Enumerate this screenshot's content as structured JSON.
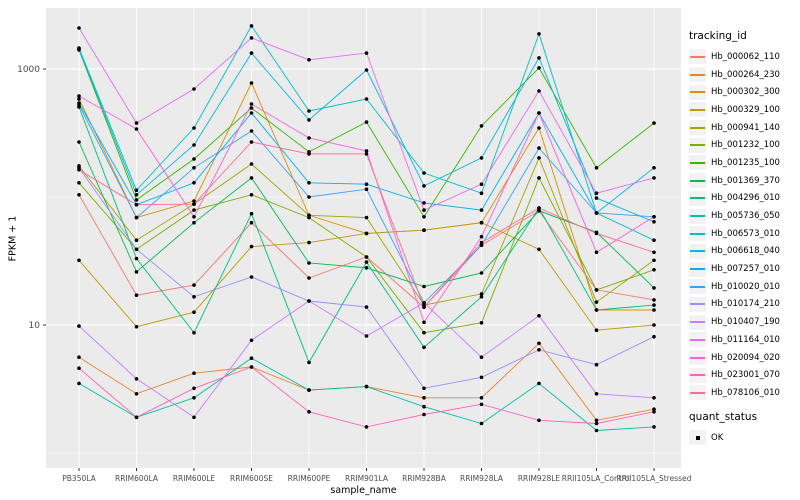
{
  "chart_data": {
    "type": "line",
    "title": "",
    "xlabel": "sample_name",
    "ylabel": "FPKM + 1",
    "y_scale": "log10",
    "ylim": [
      0.8,
      2900
    ],
    "y_major_ticks": [
      {
        "label": "10",
        "value": 10
      },
      {
        "label": "1000",
        "value": 1000
      }
    ],
    "y_minor_ticks": [
      1,
      100
    ],
    "grid": true,
    "legend_position": "right",
    "legend_title": "tracking_id",
    "point_color": "#000000",
    "panel_color": "#EBEBEB",
    "grid_color": "#FFFFFF",
    "tick_label_color": "#4D4D4D",
    "x_categories": [
      "PB350LA",
      "RRIM600LA",
      "RRIM600LE",
      "RRIM600SE",
      "RRIM600PE",
      "RRIM901LA",
      "RRIM928BA",
      "RRIM928LA",
      "RRIM928LE",
      "RRII105LA_Control",
      "RRII105LA_Stressed"
    ],
    "series": [
      {
        "name": "Hb_000062_110",
        "color": "#F8766D",
        "values": [
          104,
          17.1,
          20.5,
          63,
          23.3,
          34,
          13.8,
          42,
          78,
          18.8,
          15.7
        ]
      },
      {
        "name": "Hb_000264_230",
        "color": "#EA8331",
        "values": [
          5.6,
          2.9,
          4.2,
          4.7,
          3.1,
          3.3,
          2.7,
          2.7,
          7.2,
          1.8,
          2.2
        ]
      },
      {
        "name": "Hb_000302_300",
        "color": "#D89000",
        "values": [
          583,
          69,
          93,
          778,
          72,
          52,
          55,
          63,
          346,
          13.1,
          13.1
        ]
      },
      {
        "name": "Hb_000329_100",
        "color": "#C09B00",
        "values": [
          32,
          9.7,
          12.6,
          41,
          44,
          52,
          55,
          63,
          39,
          9.1,
          10
        ]
      },
      {
        "name": "Hb_000941_140",
        "color": "#A3A500",
        "values": [
          175,
          46,
          88,
          181,
          72,
          69,
          14.3,
          17.5,
          202,
          15.1,
          32
        ]
      },
      {
        "name": "Hb_001232_100",
        "color": "#7CAE00",
        "values": [
          129,
          39,
          79,
          104,
          69,
          34,
          8.7,
          10.4,
          141,
          18.8,
          27
        ]
      },
      {
        "name": "Hb_001235_100",
        "color": "#39B600",
        "values": [
          1410,
          95,
          198,
          496,
          225,
          385,
          70,
          359,
          1020,
          169,
          378
        ]
      },
      {
        "name": "Hb_001369_370",
        "color": "#00BB4E",
        "values": [
          269,
          26,
          63,
          141,
          30.5,
          28,
          20,
          25.5,
          78,
          53,
          19.5
        ]
      },
      {
        "name": "Hb_004296_010",
        "color": "#00BF7D",
        "values": [
          505,
          33,
          8.7,
          74,
          5.1,
          31,
          6.7,
          16.6,
          82,
          13.1,
          14.3
        ]
      },
      {
        "name": "Hb_005736_050",
        "color": "#00C1A3",
        "values": [
          3.5,
          1.9,
          2.7,
          5.5,
          3.1,
          3.3,
          2.3,
          1.7,
          3.5,
          1.5,
          1.6
        ]
      },
      {
        "name": "Hb_006573_010",
        "color": "#00BFC4",
        "values": [
          1460,
          113,
          346,
          2170,
          470,
          583,
          154,
          107,
          1880,
          75,
          46
        ]
      },
      {
        "name": "Hb_006618_040",
        "color": "#00BAE0",
        "values": [
          1430,
          104,
          255,
          1330,
          400,
          982,
          122,
          202,
          1220,
          98,
          64
        ]
      },
      {
        "name": "Hb_007257_010",
        "color": "#00B0F6",
        "values": [
          542,
          87,
          129,
          453,
          129,
          126,
          90,
          79,
          453,
          75,
          169
        ]
      },
      {
        "name": "Hb_010020_010",
        "color": "#35A2FF",
        "values": [
          524,
          69,
          169,
          328,
          100,
          115,
          14.9,
          42,
          241,
          75,
          70
        ]
      },
      {
        "name": "Hb_010174_210",
        "color": "#9590FF",
        "values": [
          169,
          39,
          16.6,
          23.7,
          15.4,
          13.8,
          3.2,
          3.9,
          6.4,
          4.9,
          8.1
        ]
      },
      {
        "name": "Hb_010407_190",
        "color": "#C77CFF",
        "values": [
          9.8,
          3.8,
          1.9,
          7.6,
          15.4,
          8.2,
          14.9,
          5.6,
          11.8,
          2.9,
          2.7
        ]
      },
      {
        "name": "Hb_011164_010",
        "color": "#E76BF3",
        "values": [
          2090,
          378,
          698,
          1750,
          1180,
          1330,
          79,
          126,
          673,
          107,
          141
        ]
      },
      {
        "name": "Hb_020094_020",
        "color": "#FA62DB",
        "values": [
          615,
          340,
          70,
          533,
          289,
          229,
          10.5,
          49,
          453,
          37,
          70
        ]
      },
      {
        "name": "Hb_023001_070",
        "color": "#FF62BC",
        "values": [
          4.6,
          1.9,
          3.2,
          4.7,
          2.1,
          1.6,
          2.0,
          2.4,
          1.8,
          1.7,
          2.1
        ]
      },
      {
        "name": "Hb_078106_010",
        "color": "#FF6A98",
        "values": [
          163,
          87,
          88,
          269,
          217,
          217,
          13.8,
          44,
          82,
          52,
          37
        ]
      }
    ],
    "quant_status": {
      "title": "quant_status",
      "items": [
        "OK"
      ]
    }
  }
}
